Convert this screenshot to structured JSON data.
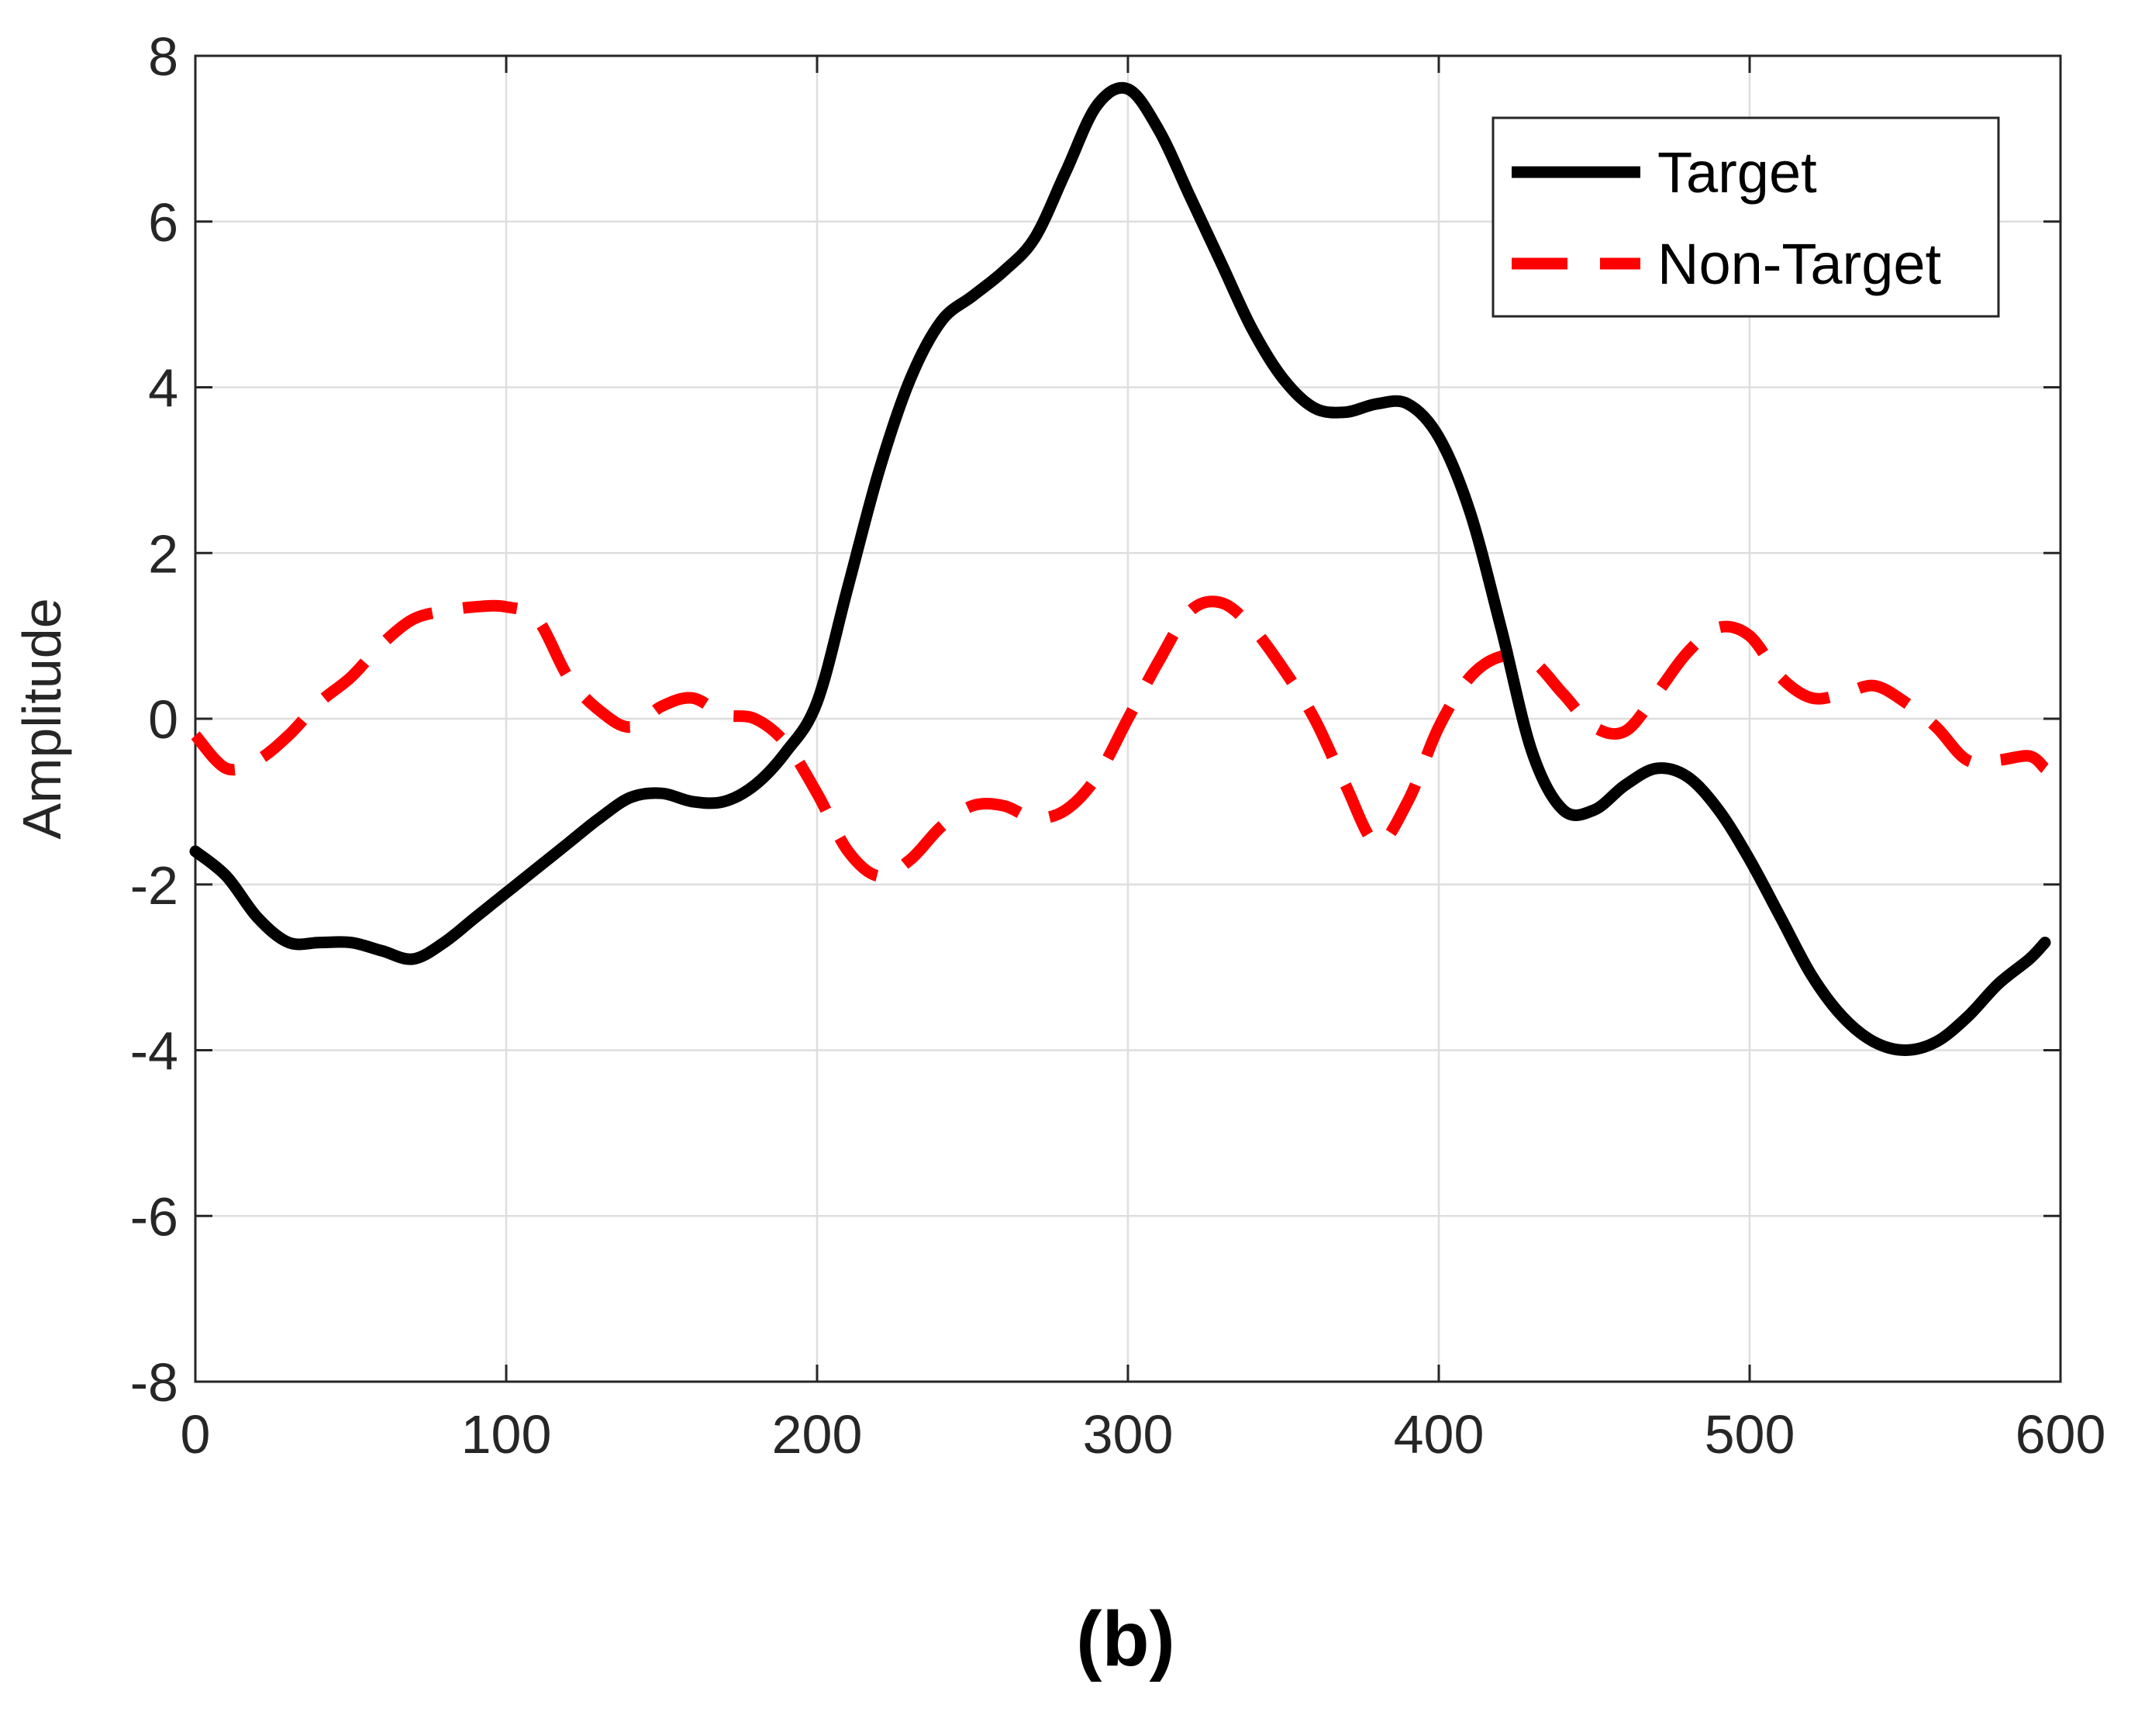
{
  "chart_data": {
    "type": "line",
    "title": "",
    "xlabel": "",
    "ylabel": "Amplitude",
    "xlim": [
      0,
      600
    ],
    "ylim": [
      -8,
      8
    ],
    "xticks": [
      "0",
      "100",
      "200",
      "300",
      "400",
      "500",
      "600"
    ],
    "yticks": [
      "-8",
      "-6",
      "-4",
      "-2",
      "0",
      "2",
      "4",
      "6",
      "8"
    ],
    "grid": true,
    "legend_position": "top-right",
    "series": [
      {
        "name": "Target",
        "color": "#000000",
        "style": "solid",
        "x": [
          0,
          10,
          20,
          30,
          40,
          50,
          60,
          70,
          80,
          90,
          100,
          110,
          120,
          130,
          140,
          150,
          160,
          170,
          180,
          190,
          200,
          210,
          220,
          230,
          240,
          250,
          260,
          270,
          280,
          290,
          300,
          310,
          320,
          330,
          340,
          350,
          360,
          370,
          380,
          390,
          400,
          410,
          420,
          430,
          440,
          450,
          460,
          470,
          480,
          490,
          500,
          510,
          520,
          530,
          540,
          550,
          560,
          570,
          580,
          590,
          595
        ],
        "y": [
          -1.6,
          -1.9,
          -2.4,
          -2.7,
          -2.7,
          -2.7,
          -2.8,
          -2.9,
          -2.7,
          -2.4,
          -2.1,
          -1.8,
          -1.5,
          -1.2,
          -0.95,
          -0.9,
          -1.0,
          -1.0,
          -0.8,
          -0.4,
          0.2,
          1.6,
          3.0,
          4.1,
          4.8,
          5.1,
          5.4,
          5.8,
          6.6,
          7.4,
          7.6,
          7.1,
          6.3,
          5.5,
          4.7,
          4.1,
          3.75,
          3.7,
          3.8,
          3.8,
          3.4,
          2.5,
          1.1,
          -0.4,
          -1.1,
          -1.1,
          -0.8,
          -0.6,
          -0.7,
          -1.1,
          -1.7,
          -2.4,
          -3.1,
          -3.6,
          -3.9,
          -4.0,
          -3.9,
          -3.6,
          -3.2,
          -2.9,
          -2.7
        ]
      },
      {
        "name": "Non-Target",
        "color": "#ff0000",
        "style": "dashed",
        "x": [
          0,
          10,
          20,
          30,
          40,
          50,
          60,
          70,
          80,
          90,
          100,
          110,
          120,
          130,
          140,
          150,
          160,
          170,
          180,
          190,
          200,
          210,
          220,
          230,
          240,
          250,
          260,
          270,
          280,
          290,
          300,
          310,
          320,
          330,
          340,
          350,
          360,
          370,
          380,
          390,
          400,
          410,
          420,
          430,
          440,
          450,
          460,
          470,
          480,
          490,
          500,
          510,
          520,
          530,
          540,
          550,
          560,
          570,
          580,
          590,
          595
        ],
        "y": [
          -0.2,
          -0.6,
          -0.5,
          -0.2,
          0.2,
          0.5,
          0.9,
          1.2,
          1.3,
          1.35,
          1.35,
          1.2,
          0.5,
          0.1,
          -0.1,
          0.15,
          0.25,
          0.05,
          0.0,
          -0.3,
          -0.9,
          -1.6,
          -1.9,
          -1.7,
          -1.3,
          -1.05,
          -1.05,
          -1.2,
          -1.1,
          -0.7,
          0.0,
          0.7,
          1.3,
          1.4,
          1.1,
          0.6,
          0.0,
          -0.8,
          -1.5,
          -1.0,
          -0.1,
          0.5,
          0.75,
          0.7,
          0.3,
          -0.1,
          -0.15,
          0.3,
          0.8,
          1.1,
          1.0,
          0.5,
          0.25,
          0.3,
          0.4,
          0.2,
          -0.1,
          -0.5,
          -0.5,
          -0.45,
          -0.6
        ]
      }
    ],
    "caption": "(b)"
  }
}
